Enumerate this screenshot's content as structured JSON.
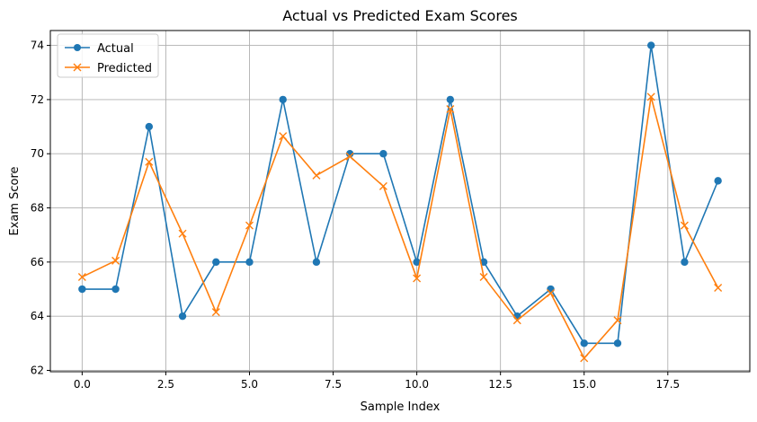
{
  "chart_data": {
    "type": "line",
    "title": "Actual vs Predicted Exam Scores",
    "xlabel": "Sample Index",
    "ylabel": "Exam Score",
    "xlim": [
      -0.95,
      19.95
    ],
    "ylim": [
      61.95,
      74.55
    ],
    "xticks": [
      0.0,
      2.5,
      5.0,
      7.5,
      10.0,
      12.5,
      15.0,
      17.5
    ],
    "xtick_labels": [
      "0.0",
      "2.5",
      "5.0",
      "7.5",
      "10.0",
      "12.5",
      "15.0",
      "17.5"
    ],
    "yticks": [
      62,
      64,
      66,
      68,
      70,
      72,
      74
    ],
    "ytick_labels": [
      "62",
      "64",
      "66",
      "68",
      "70",
      "72",
      "74"
    ],
    "grid": true,
    "legend_position": "top-left",
    "x": [
      0,
      1,
      2,
      3,
      4,
      5,
      6,
      7,
      8,
      9,
      10,
      11,
      12,
      13,
      14,
      15,
      16,
      17,
      18,
      19
    ],
    "series": [
      {
        "name": "Actual",
        "color": "#1f77b4",
        "marker": "circle",
        "values": [
          65,
          65,
          71,
          64,
          66,
          66,
          72,
          66,
          70,
          70,
          66,
          72,
          66,
          64,
          65,
          63,
          63,
          74,
          66,
          69
        ]
      },
      {
        "name": "Predicted",
        "color": "#ff7f0e",
        "marker": "x",
        "values": [
          65.45,
          66.05,
          69.7,
          67.05,
          64.15,
          67.35,
          70.65,
          69.2,
          69.9,
          68.8,
          65.4,
          71.65,
          65.45,
          63.85,
          64.85,
          62.45,
          63.85,
          72.1,
          67.35,
          65.05
        ]
      }
    ]
  }
}
